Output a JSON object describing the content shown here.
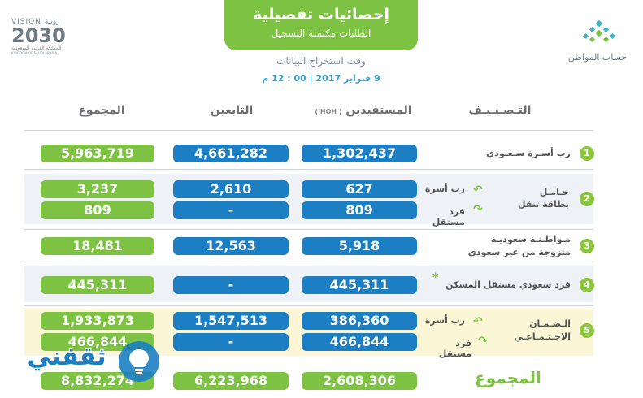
{
  "header": {
    "title": "إحصائيات تفصيلية",
    "subtitle": "الطلبات مكتملة التسجيل",
    "time_label": "وقت استخراج البيانات",
    "time_value": "9 فبراير 2017 | 00 : 12 م"
  },
  "logos": {
    "citizen_account": "حساب المواطن",
    "vision_top": "VISION رؤيـة",
    "vision_year": "2030",
    "vision_sub_ar": "المملكة العربية السعودية",
    "vision_sub_en": "KINGDOM OF SAUDI ARABIA",
    "watermark": "ثقفني"
  },
  "columns": {
    "category": "التـصـنـيـف",
    "beneficiaries": "المستفيدين",
    "hoh": "( HOH )",
    "dependents": "التابعين",
    "total": "المجموع"
  },
  "rows": {
    "r1": {
      "num": "1",
      "label": "رب أسـرة سـعـودي",
      "ben": "1,302,437",
      "dep": "4,661,282",
      "tot": "5,963,719"
    },
    "r2": {
      "num": "2",
      "label": "حـامـل",
      "label2": "بطاقة تنقل",
      "sub1": "رب أسرة",
      "sub2": "فرد مستقل",
      "ben1": "627",
      "dep1": "2,610",
      "tot1": "3,237",
      "ben2": "809",
      "dep2": "-",
      "tot2": "809"
    },
    "r3": {
      "num": "3",
      "label": "مـواطـنـة سعوديـة",
      "label2": "متزوجة من غير سعودي",
      "ben": "5,918",
      "dep": "12,563",
      "tot": "18,481"
    },
    "r4": {
      "num": "4",
      "label": "فرد سعودي مستقل المسكن",
      "star": "*",
      "ben": "445,311",
      "dep": "-",
      "tot": "445,311"
    },
    "r5": {
      "num": "5",
      "label": "الـضـمـان",
      "label2": "الاجـتـمـاعـي",
      "sub1": "رب أسرة",
      "sub2": "فرد مستقل",
      "ben1": "386,360",
      "dep1": "1,547,513",
      "tot1": "1,933,873",
      "ben2": "466,844",
      "dep2": "-",
      "tot2": "466,844"
    }
  },
  "totals": {
    "label": "المجموع",
    "ben": "2,608,306",
    "dep": "6,223,968",
    "tot": "8,832,274"
  },
  "colors": {
    "green": "#7dc242",
    "blue": "#1c7fc3",
    "gray_row": "#eef1f5",
    "yellow_row": "#fbf7d6"
  }
}
